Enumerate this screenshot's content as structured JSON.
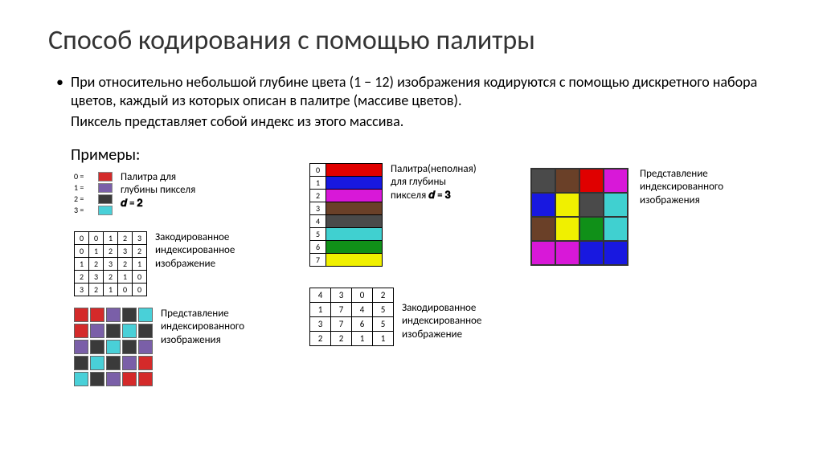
{
  "title": "Способ кодирования с помощью палитры",
  "bullet": "При относительно небольшой глубине цвета (1  − 12) изображения кодируются с помощью дискретного набора цветов, каждый из которых описан в палитре (массиве цветов).",
  "subtext": "Пиксель представляет собой индекс из этого массива.",
  "examples_label": "Примеры:",
  "palette4": {
    "indices": [
      "0 =",
      "1 =",
      "2 =",
      "3 ="
    ],
    "colors": [
      "#d42a2a",
      "#7a5fa8",
      "#3a3a3a",
      "#49d0d8"
    ],
    "caption_l1": "Палитра для",
    "caption_l2": "глубины пикселя",
    "caption_l3": "𝒅 = 𝟐"
  },
  "idx5": {
    "rows": [
      [
        "0",
        "0",
        "1",
        "2",
        "3"
      ],
      [
        "0",
        "1",
        "2",
        "3",
        "2"
      ],
      [
        "1",
        "2",
        "3",
        "2",
        "1"
      ],
      [
        "2",
        "3",
        "2",
        "1",
        "0"
      ],
      [
        "3",
        "2",
        "1",
        "0",
        "0"
      ]
    ],
    "caption_l1": "Закодированное",
    "caption_l2": "индексированное",
    "caption_l3": "изображение"
  },
  "grid5": {
    "colors": [
      "#d42a2a",
      "#d42a2a",
      "#7a5fa8",
      "#3a3a3a",
      "#49d0d8",
      "#d42a2a",
      "#7a5fa8",
      "#3a3a3a",
      "#49d0d8",
      "#3a3a3a",
      "#7a5fa8",
      "#3a3a3a",
      "#49d0d8",
      "#3a3a3a",
      "#7a5fa8",
      "#3a3a3a",
      "#49d0d8",
      "#3a3a3a",
      "#7a5fa8",
      "#d42a2a",
      "#49d0d8",
      "#3a3a3a",
      "#7a5fa8",
      "#d42a2a",
      "#d42a2a"
    ],
    "caption_l1": "Представление",
    "caption_l2": "индексированного",
    "caption_l3": "изображения"
  },
  "palette8": {
    "indices": [
      "0",
      "1",
      "2",
      "3",
      "4",
      "5",
      "6",
      "7"
    ],
    "colors": [
      "#e00000",
      "#1818e0",
      "#d818d8",
      "#6a4028",
      "#4a4a4a",
      "#40d0d0",
      "#109018",
      "#f0f000"
    ],
    "caption_l1": "Палитра(неполная)",
    "caption_l2": "для глубины",
    "caption_l3_a": "пикселя ",
    "caption_l3_b": "𝒅 = 𝟑"
  },
  "idx4": {
    "rows": [
      [
        "4",
        "3",
        "0",
        "2"
      ],
      [
        "1",
        "7",
        "4",
        "5"
      ],
      [
        "3",
        "7",
        "6",
        "5"
      ],
      [
        "2",
        "2",
        "1",
        "1"
      ]
    ],
    "caption_l1": "Закодированное",
    "caption_l2": "индексированное",
    "caption_l3": "изображение"
  },
  "grid4": {
    "colors": [
      "#4a4a4a",
      "#6a4028",
      "#e00000",
      "#d818d8",
      "#1818e0",
      "#f0f000",
      "#4a4a4a",
      "#40d0d0",
      "#6a4028",
      "#f0f000",
      "#109018",
      "#40d0d0",
      "#d818d8",
      "#d818d8",
      "#1818e0",
      "#1818e0"
    ],
    "caption_l1": "Представление",
    "caption_l2": "индексированного",
    "caption_l3": "изображения"
  }
}
